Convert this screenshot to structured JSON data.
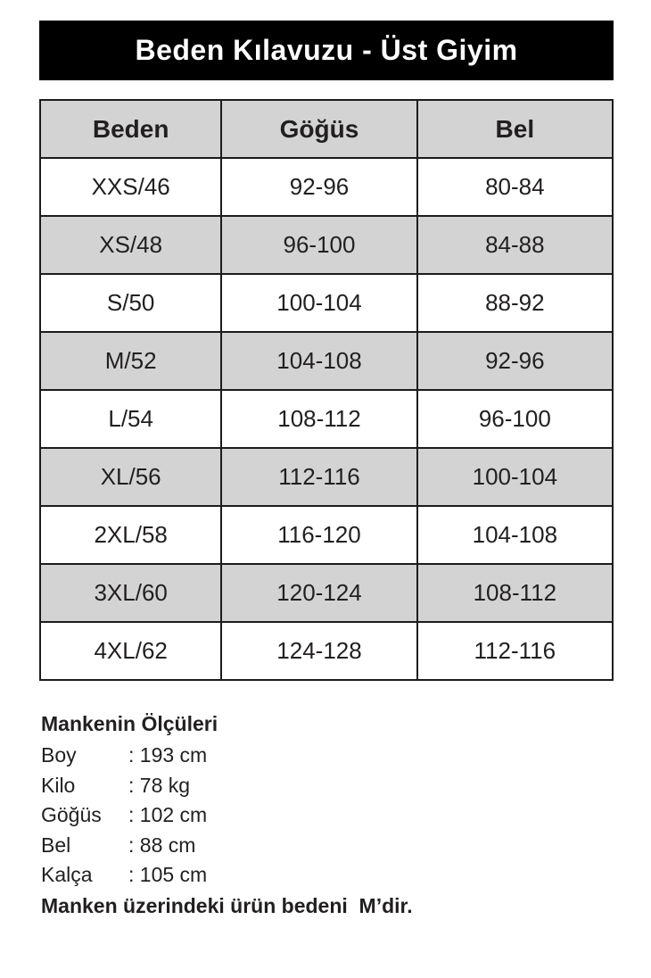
{
  "banner": {
    "title": "Beden Kılavuzu - Üst Giyim"
  },
  "table": {
    "headers": [
      "Beden",
      "Göğüs",
      "Bel"
    ],
    "rows": [
      [
        "XXS/46",
        "92-96",
        "80-84"
      ],
      [
        "XS/48",
        "96-100",
        "84-88"
      ],
      [
        "S/50",
        "100-104",
        "88-92"
      ],
      [
        "M/52",
        "104-108",
        "92-96"
      ],
      [
        "L/54",
        "108-112",
        "96-100"
      ],
      [
        "XL/56",
        "112-116",
        "100-104"
      ],
      [
        "2XL/58",
        "116-120",
        "104-108"
      ],
      [
        "3XL/60",
        "120-124",
        "108-112"
      ],
      [
        "4XL/62",
        "124-128",
        "112-116"
      ]
    ]
  },
  "model_info": {
    "heading": "Mankenin Ölçüleri",
    "measurements": [
      {
        "label": "Boy",
        "value": ": 193 cm"
      },
      {
        "label": "Kilo",
        "value": ": 78 kg"
      },
      {
        "label": "Göğüs",
        "value": ": 102 cm"
      },
      {
        "label": "Bel",
        "value": ": 88 cm"
      },
      {
        "label": "Kalça",
        "value": ": 105 cm"
      }
    ],
    "note": "Manken üzerindeki ürün bedeni  M’dir."
  },
  "colors": {
    "banner_bg": "#000000",
    "banner_text": "#ffffff",
    "stripe_gray": "#d3d3d3",
    "row_white": "#ffffff",
    "border": "#1c1c1c",
    "text": "#221f20"
  }
}
